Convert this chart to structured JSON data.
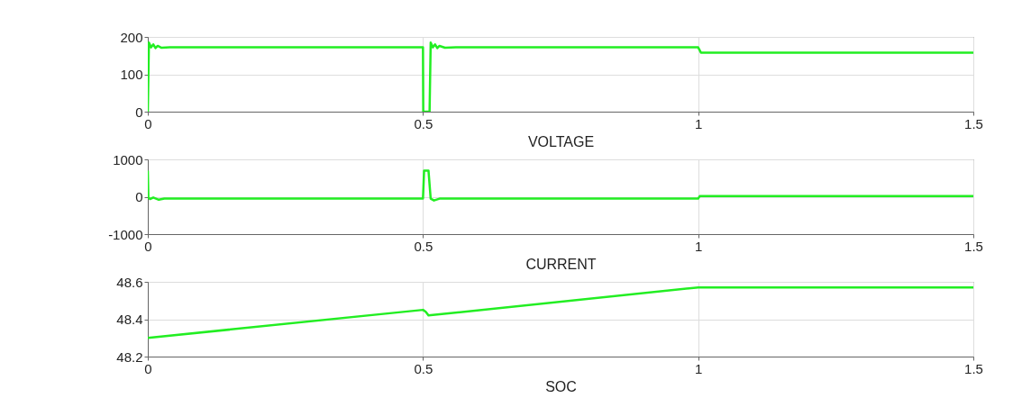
{
  "chart_data": [
    {
      "type": "line",
      "xlabel": "VOLTAGE",
      "x": [
        0,
        0.002,
        0.006,
        0.01,
        0.014,
        0.018,
        0.025,
        0.04,
        0.5,
        0.5005,
        0.512,
        0.514,
        0.518,
        0.522,
        0.526,
        0.53,
        0.54,
        0.56,
        1.0,
        1.005,
        1.5
      ],
      "series": [
        {
          "color": "#22ee22",
          "values": [
            0,
            185,
            172,
            180,
            170,
            176,
            171,
            172,
            172,
            0,
            0,
            185,
            172,
            180,
            170,
            176,
            171,
            172,
            172,
            158,
            158
          ]
        }
      ],
      "xlim": [
        0,
        1.5
      ],
      "xticks": [
        0,
        0.5,
        1,
        1.5
      ],
      "ylim": [
        0,
        200
      ],
      "yticks": [
        0,
        100,
        200
      ],
      "grid": true
    },
    {
      "type": "line",
      "xlabel": "CURRENT",
      "x": [
        0,
        0.001,
        0.004,
        0.01,
        0.02,
        0.03,
        0.5,
        0.502,
        0.51,
        0.514,
        0.52,
        0.53,
        1.0,
        1.003,
        1.5
      ],
      "series": [
        {
          "color": "#22ee22",
          "values": [
            700,
            -20,
            -60,
            -20,
            -80,
            -50,
            -50,
            700,
            700,
            -50,
            -100,
            -50,
            -50,
            20,
            20
          ]
        }
      ],
      "xlim": [
        0,
        1.5
      ],
      "xticks": [
        0,
        0.5,
        1,
        1.5
      ],
      "ylim": [
        -1000,
        1000
      ],
      "yticks": [
        -1000,
        0,
        1000
      ],
      "grid": true
    },
    {
      "type": "line",
      "xlabel": "SOC",
      "x": [
        0,
        0.5,
        0.505,
        0.51,
        1.0,
        1.5
      ],
      "series": [
        {
          "color": "#22ee22",
          "values": [
            48.3,
            48.45,
            48.44,
            48.42,
            48.57,
            48.57
          ]
        }
      ],
      "xlim": [
        0,
        1.5
      ],
      "xticks": [
        0,
        0.5,
        1,
        1.5
      ],
      "ylim": [
        48.2,
        48.6
      ],
      "yticks": [
        48.2,
        48.4,
        48.6
      ],
      "grid": true
    }
  ]
}
